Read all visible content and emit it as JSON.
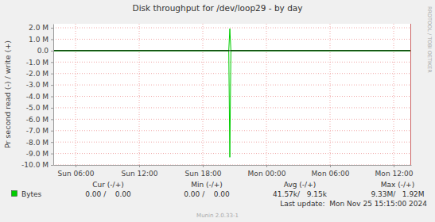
{
  "chart_data": {
    "type": "line",
    "title": "Disk throughput for /dev/loop29 - by day",
    "y_label": "Pr second read (-) / write (+)",
    "watermark": "RRDTOOL / TOBI OETIKER",
    "last_update": "Last update:  Mon Nov 25 15:15:00 2024",
    "footer": "Munin 2.0.33-1",
    "grid": true,
    "x": [
      3.9,
      20.45,
      20.55,
      20.65,
      37.65
    ],
    "xlim": [
      3.9,
      37.65
    ],
    "xticks": [
      {
        "value": 6,
        "label": "Sun 06:00"
      },
      {
        "value": 12,
        "label": "Sun 12:00"
      },
      {
        "value": 18,
        "label": "Sun 18:00"
      },
      {
        "value": 24,
        "label": "Mon 00:00"
      },
      {
        "value": 30,
        "label": "Mon 06:00"
      },
      {
        "value": 36,
        "label": "Mon 12:00"
      }
    ],
    "ylim": [
      -10000000,
      2350000
    ],
    "yticks": [
      {
        "value": 2000000,
        "label": "2.0 M"
      },
      {
        "value": 1000000,
        "label": "1.0 M"
      },
      {
        "value": 0,
        "label": "0.0"
      },
      {
        "value": -1000000,
        "label": "-1.0 M"
      },
      {
        "value": -2000000,
        "label": "-2.0 M"
      },
      {
        "value": -3000000,
        "label": "-3.0 M"
      },
      {
        "value": -4000000,
        "label": "-4.0 M"
      },
      {
        "value": -5000000,
        "label": "-5.0 M"
      },
      {
        "value": -6000000,
        "label": "-6.0 M"
      },
      {
        "value": -7000000,
        "label": "-7.0 M"
      },
      {
        "value": -8000000,
        "label": "-8.0 M"
      },
      {
        "value": -9000000,
        "label": "-9.0 M"
      },
      {
        "value": -10000000,
        "label": "-10.0 M"
      }
    ],
    "legend_columns": [
      "Cur (-/+)",
      "Min (-/+)",
      "Avg (-/+)",
      "Max (-/+)"
    ],
    "series": [
      {
        "name": "Bytes",
        "color": "#00cc00",
        "values": [
          0,
          0,
          1920000,
          0,
          0
        ],
        "legend_values": [
          "0.00 /    0.00",
          "0.00 /    0.00",
          "41.57k/   9.15k",
          "9.33M/   1.92M"
        ]
      },
      {
        "color": "#00cc00",
        "values": [
          0,
          0,
          -9330000,
          0,
          0
        ]
      }
    ]
  }
}
